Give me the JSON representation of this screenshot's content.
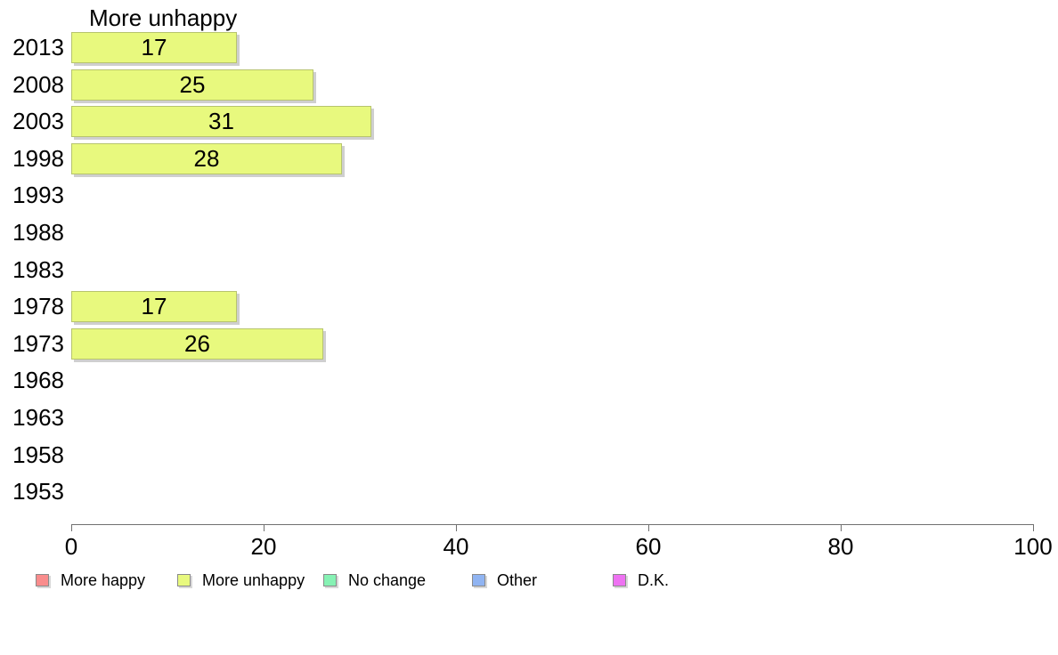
{
  "chart_data": {
    "type": "bar",
    "orientation": "horizontal",
    "title": "More unhappy",
    "categories": [
      "2013",
      "2008",
      "2003",
      "1998",
      "1993",
      "1988",
      "1983",
      "1978",
      "1973",
      "1968",
      "1963",
      "1958",
      "1953"
    ],
    "values": [
      17,
      25,
      31,
      28,
      null,
      null,
      null,
      17,
      26,
      null,
      null,
      null,
      null
    ],
    "xlabel": "",
    "ylabel": "",
    "xlim": [
      0,
      100
    ],
    "x_ticks": [
      0,
      20,
      40,
      60,
      80,
      100
    ],
    "grid": "off",
    "bar_fill_color": "#e8f97e",
    "bar_border_color": "#b7c46e",
    "shadow_color": "#cfcfcf",
    "axis_color": "#707070",
    "legend_position": "bottom",
    "legend": [
      {
        "label": "More happy",
        "color": "#f98c8c"
      },
      {
        "label": "More unhappy",
        "color": "#e8f97e"
      },
      {
        "label": "No change",
        "color": "#86f2b4"
      },
      {
        "label": "Other",
        "color": "#90b4f2"
      },
      {
        "label": "D.K.",
        "color": "#ee72f2"
      }
    ]
  }
}
